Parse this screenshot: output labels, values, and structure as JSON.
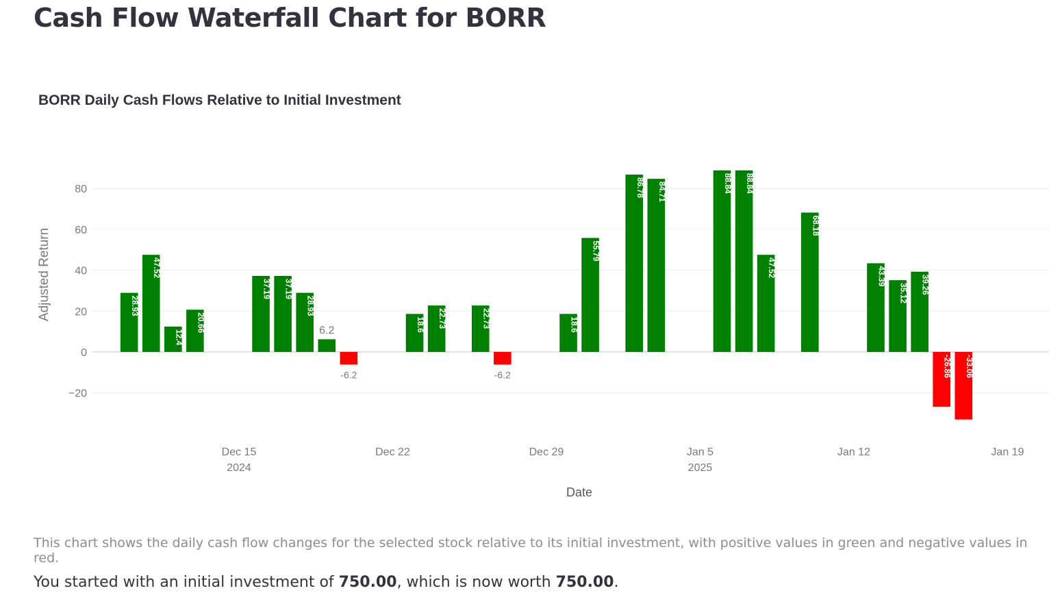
{
  "page": {
    "title": "Cash Flow Waterfall Chart for BORR",
    "caption": "This chart shows the daily cash flow changes for the selected stock relative to its initial investment, with positive values in green and negative values in red.",
    "summary": {
      "prefix": "You started with an initial investment of ",
      "initial": "750.00",
      "middle": ", which is now worth ",
      "final": "750.00",
      "suffix": "."
    }
  },
  "colors": {
    "positive": "#008000",
    "negative": "#ff0000"
  },
  "chart_data": {
    "type": "bar",
    "title": "BORR Daily Cash Flows Relative to Initial Investment",
    "xlabel": "Date",
    "ylabel": "Adjusted Return",
    "grid": true,
    "ylim": [
      -35,
      95
    ],
    "yticks": [
      80,
      60,
      40,
      20,
      0,
      -20
    ],
    "ytick_labels": [
      "80",
      "60",
      "40",
      "20",
      "0",
      "−20"
    ],
    "xticks": [
      {
        "date": "2024-12-15",
        "label": "Dec 15",
        "sub": "2024"
      },
      {
        "date": "2024-12-22",
        "label": "Dec 22",
        "sub": ""
      },
      {
        "date": "2024-12-29",
        "label": "Dec 29",
        "sub": ""
      },
      {
        "date": "2025-01-05",
        "label": "Jan 5",
        "sub": "2025"
      },
      {
        "date": "2025-01-12",
        "label": "Jan 12",
        "sub": ""
      },
      {
        "date": "2025-01-19",
        "label": "Jan 19",
        "sub": ""
      }
    ],
    "x": [
      "2024-12-10",
      "2024-12-11",
      "2024-12-12",
      "2024-12-13",
      "2024-12-16",
      "2024-12-17",
      "2024-12-18",
      "2024-12-19",
      "2024-12-20",
      "2024-12-23",
      "2024-12-24",
      "2024-12-26",
      "2024-12-27",
      "2024-12-30",
      "2024-12-31",
      "2025-01-02",
      "2025-01-03",
      "2025-01-06",
      "2025-01-07",
      "2025-01-08",
      "2025-01-10",
      "2025-01-13",
      "2025-01-14",
      "2025-01-15",
      "2025-01-16",
      "2025-01-17"
    ],
    "values": [
      28.93,
      47.52,
      12.4,
      20.66,
      37.19,
      37.19,
      28.93,
      6.2,
      -6.2,
      18.6,
      22.73,
      22.73,
      -6.2,
      18.6,
      55.79,
      86.78,
      84.71,
      88.84,
      88.84,
      47.52,
      68.18,
      43.39,
      35.12,
      39.26,
      -26.86,
      -33.06
    ],
    "labels": [
      "28.93",
      "47.52",
      "12.4",
      "20.66",
      "37.19",
      "37.19",
      "28.93",
      "6.2",
      "-6.2",
      "18.6",
      "22.73",
      "22.73",
      "-6.2",
      "18.6",
      "55.79",
      "86.78",
      "84.71",
      "88.84",
      "88.84",
      "47.52",
      "68.18",
      "43.39",
      "35.12",
      "39.26",
      "-26.86",
      "-33.06"
    ]
  }
}
